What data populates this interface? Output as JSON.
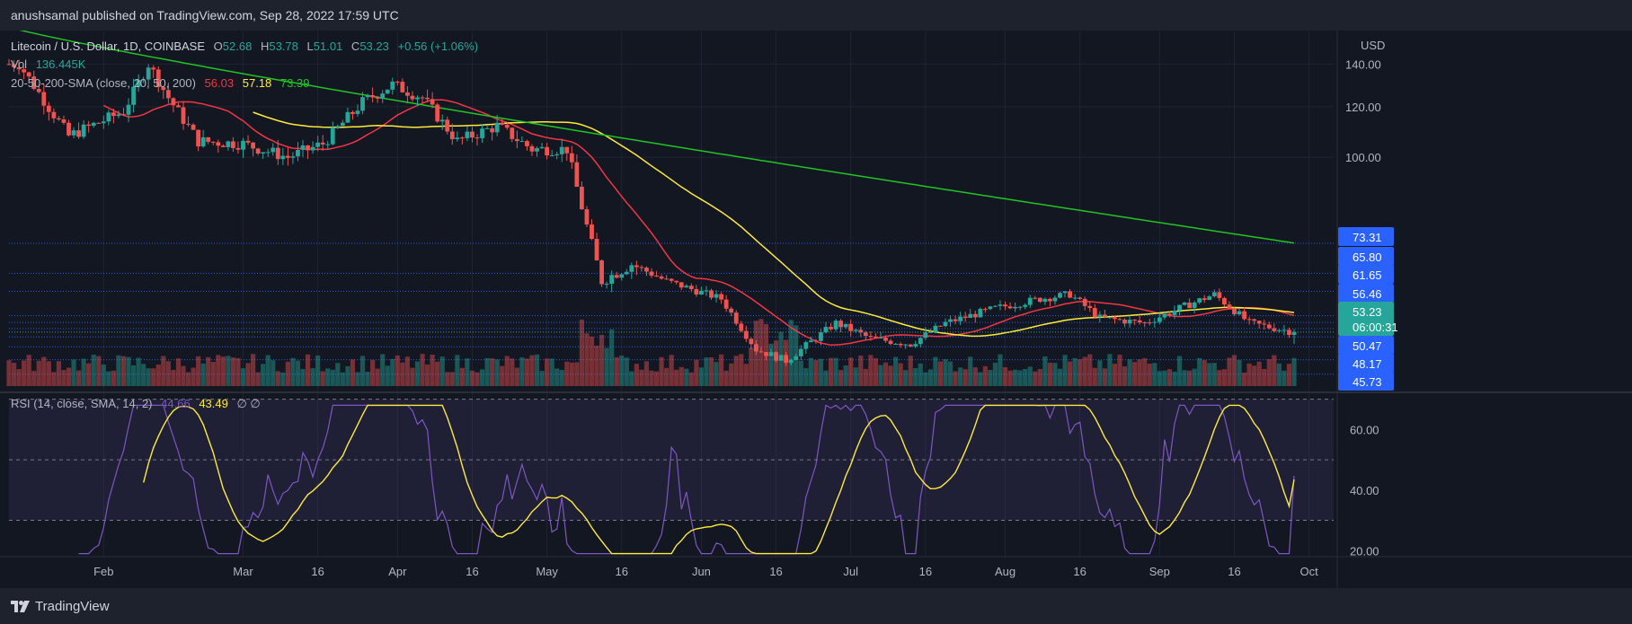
{
  "header": {
    "publisher": "anushsamal published on TradingView.com, Sep 28, 2022 17:59 UTC"
  },
  "legend": {
    "symbol": "Litecoin / U.S. Dollar, 1D, COINBASE",
    "o_label": "O",
    "o": "52.68",
    "h_label": "H",
    "h": "53.78",
    "l_label": "L",
    "l": "51.01",
    "c_label": "C",
    "c": "53.23",
    "change": "+0.56 (+1.06%)",
    "vol_label": "Vol",
    "vol": "136.445K",
    "sma_label": "20-50-200-SMA (close, 20, 50, 200)",
    "sma20": "56.03",
    "sma50": "57.18",
    "sma200": "73.39",
    "rsi_label": "RSI (14, close, SMA, 14, 2)",
    "rsi": "44.66",
    "rsi_sma": "43.49",
    "rsi_extra": "∅ ∅"
  },
  "footer": {
    "brand": "TradingView"
  },
  "colors": {
    "bg": "#131722",
    "up": "#26a69a",
    "down": "#ef5350",
    "sma20": "#f23645",
    "sma50": "#ffeb3b",
    "sma200": "#22c322",
    "rsi": "#7e57c2"
  },
  "chart_data": [
    {
      "type": "candlestick",
      "title": "Litecoin / U.S. Dollar, 1D, COINBASE",
      "ylabel": "USD",
      "y_scale": "log",
      "y_ticks": [
        "140.00",
        "120.00",
        "100.00"
      ],
      "x_ticks": [
        "Feb",
        "Mar",
        "16",
        "Apr",
        "16",
        "May",
        "16",
        "Jun",
        "16",
        "Jul",
        "16",
        "Aug",
        "16",
        "Sep",
        "16",
        "Oct"
      ],
      "price_labels": [
        "73.31",
        "65.80",
        "61.65",
        "56.46",
        "53.23",
        "06:00:31",
        "50.47",
        "48.17",
        "45.73"
      ],
      "last": {
        "open": 52.68,
        "high": 53.78,
        "low": 51.01,
        "close": 53.23
      },
      "series": [
        {
          "name": "SMA 20",
          "last": 56.03
        },
        {
          "name": "SMA 50",
          "last": 57.18
        },
        {
          "name": "SMA 200",
          "last": 73.39
        }
      ],
      "anchors": [
        [
          "2022-01-15",
          140
        ],
        [
          "2022-01-25",
          108
        ],
        [
          "2022-02-05",
          118
        ],
        [
          "2022-02-10",
          140
        ],
        [
          "2022-02-14",
          124
        ],
        [
          "2022-02-20",
          106
        ],
        [
          "2022-03-01",
          105
        ],
        [
          "2022-03-10",
          100
        ],
        [
          "2022-03-17",
          105
        ],
        [
          "2022-03-25",
          122
        ],
        [
          "2022-03-31",
          130
        ],
        [
          "2022-04-06",
          124
        ],
        [
          "2022-04-13",
          106
        ],
        [
          "2022-04-21",
          112
        ],
        [
          "2022-04-28",
          103
        ],
        [
          "2022-05-05",
          103
        ],
        [
          "2022-05-09",
          78
        ],
        [
          "2022-05-12",
          64
        ],
        [
          "2022-05-18",
          68
        ],
        [
          "2022-05-25",
          64
        ],
        [
          "2022-06-05",
          60
        ],
        [
          "2022-06-12",
          50
        ],
        [
          "2022-06-18",
          48
        ],
        [
          "2022-06-28",
          55
        ],
        [
          "2022-07-05",
          52
        ],
        [
          "2022-07-13",
          51
        ],
        [
          "2022-07-20",
          55
        ],
        [
          "2022-07-30",
          58
        ],
        [
          "2022-08-08",
          60
        ],
        [
          "2022-08-14",
          61
        ],
        [
          "2022-08-20",
          56
        ],
        [
          "2022-08-29",
          55
        ],
        [
          "2022-09-05",
          58
        ],
        [
          "2022-09-12",
          61
        ],
        [
          "2022-09-19",
          55
        ],
        [
          "2022-09-28",
          53.23
        ]
      ]
    },
    {
      "type": "line",
      "title": "RSI (14, close, SMA, 14, 2)",
      "y_ticks": [
        "60.00",
        "40.00",
        "20.00"
      ],
      "ylim": [
        18,
        69
      ],
      "bands": [
        30,
        50,
        70
      ],
      "series": [
        {
          "name": "RSI",
          "last": 44.66
        },
        {
          "name": "RSI SMA",
          "last": 43.49
        }
      ]
    }
  ]
}
